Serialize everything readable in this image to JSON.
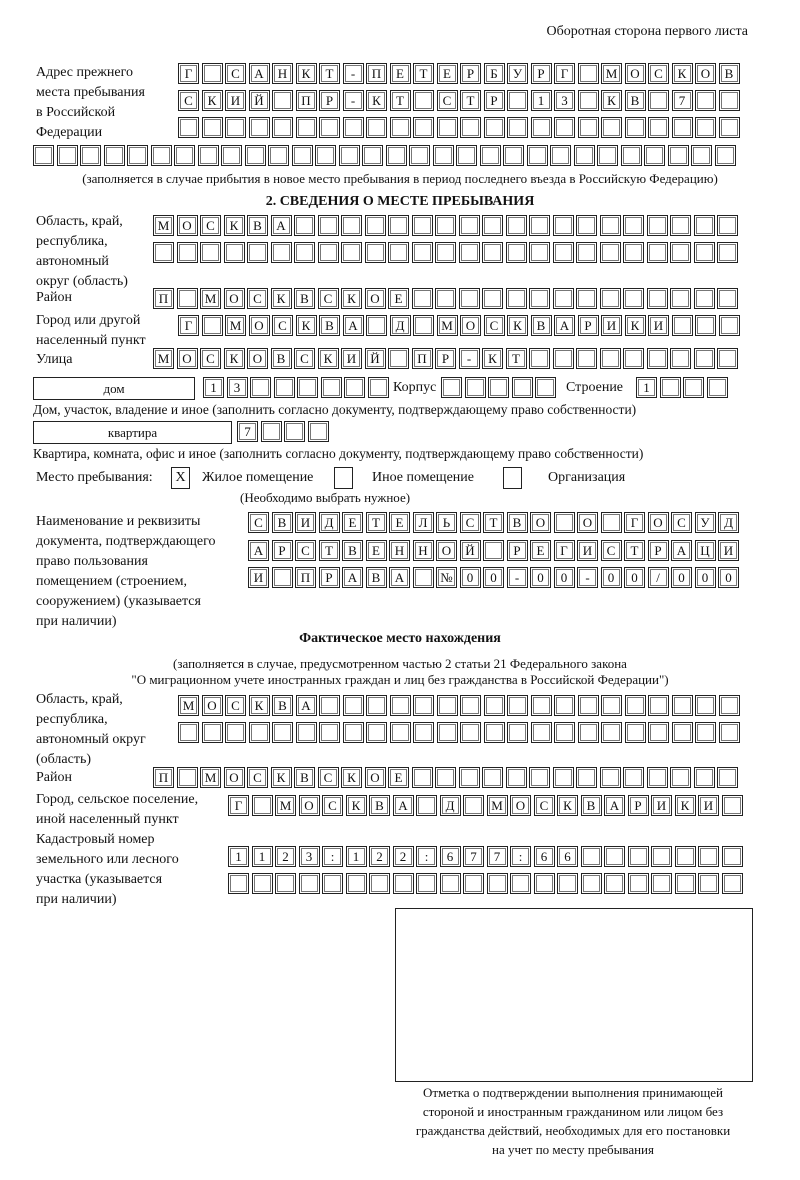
{
  "header": "Оборотная сторона первого листа",
  "prev_address": {
    "label_lines": [
      "Адрес прежнего",
      "места пребывания",
      "в Российской",
      "Федерации"
    ],
    "rows": [
      "Г САНКТ-ПЕТЕРБУРГ МОСКОВ",
      "СКИЙ ПР-КТ СТР 13 КВ 7",
      "",
      ""
    ],
    "note": "(заполняется в случае прибытия в новое место пребывания в период последнего въезда в Российскую Федерацию)"
  },
  "section2": {
    "title": "2. СВЕДЕНИЯ О МЕСТЕ ПРЕБЫВАНИЯ",
    "region_label": [
      "Область, край,",
      "республика,",
      "автономный",
      "округ (область)"
    ],
    "region_rows": [
      "МОСКВА",
      ""
    ],
    "district_label": "Район",
    "district": "П МОСКВСКОЕ",
    "city_label": [
      "Город или другой",
      "населенный пункт"
    ],
    "city": "Г МОСКВА Д МОСКВАРИКИ",
    "street_label": "Улица",
    "street": "МОСКОВСКИЙ ПР-КТ",
    "house_type": "дом",
    "house": "13",
    "korpus_label": "Корпус",
    "korpus": "",
    "stroenie_label": "Строение",
    "stroenie": "1",
    "house_note": "Дом, участок, владение и иное (заполнить согласно документу, подтверждающему право собственности)",
    "flat_type": "квартира",
    "flat": "7",
    "flat_note": "Квартира, комната, офис и иное (заполнить согласно документу, подтверждающему право собственности)",
    "place_label": "Место пребывания:",
    "options": [
      {
        "label": "Жилое помещение",
        "mark": "X"
      },
      {
        "label": "Иное помещение",
        "mark": ""
      },
      {
        "label": "Организация",
        "mark": ""
      }
    ],
    "options_note": "(Необходимо выбрать нужное)",
    "doc_label": [
      "Наименование и реквизиты",
      "документа, подтверждающего",
      "право пользования",
      "помещением (строением,",
      "сооружением) (указывается",
      "при наличии)"
    ],
    "doc_rows": [
      "СВИДЕТЕЛЬСТВО О ГОСУД",
      "АРСТВЕННОЙ РЕГИСТРАЦИ",
      "И ПРАВА №00-00-00/000"
    ]
  },
  "actual": {
    "title": "Фактическое место нахождения",
    "note1": "(заполняется в случае, предусмотренном частью 2 статьи 21 Федерального закона",
    "note2": "\"О миграционном учете иностранных граждан и лиц без гражданства в Российской Федерации\")",
    "region_label": [
      "Область, край,",
      "республика,",
      "автономный округ",
      "(область)"
    ],
    "region_rows": [
      "МОСКВА",
      ""
    ],
    "district_label": "Район",
    "district": "П МОСКВСКОЕ",
    "city_label": [
      "Город, сельское поселение,",
      "иной населенный пункт"
    ],
    "city": "Г МОСКВА Д МОСКВАРИКИ",
    "cadastre_label": [
      "Кадастровый номер",
      "земельного или лесного",
      "участка (указывается",
      "при наличии)"
    ],
    "cadastre_rows": [
      "1123:122:677:66",
      ""
    ]
  },
  "stamp_caption": [
    "Отметка о подтверждении выполнения принимающей",
    "стороной и иностранным гражданином или лицом без",
    "гражданства действий, необходимых для его постановки",
    "на учет по месту пребывания"
  ]
}
